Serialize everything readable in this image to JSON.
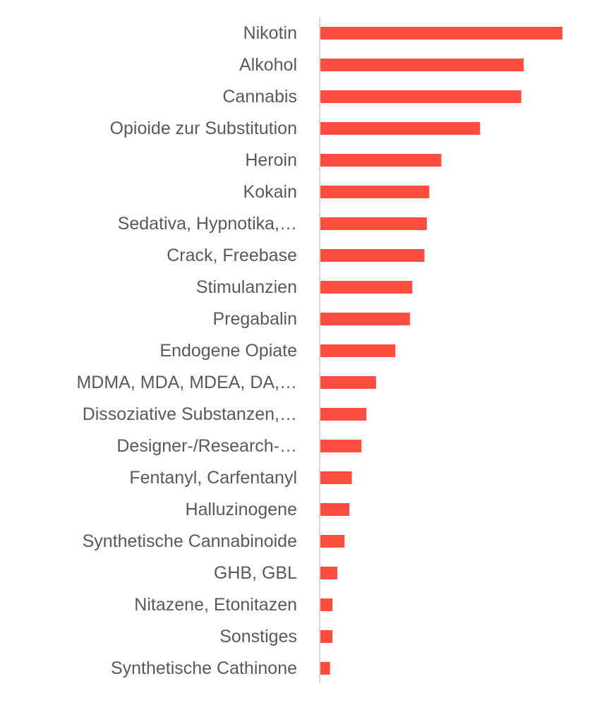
{
  "chart_data": {
    "type": "bar",
    "orientation": "horizontal",
    "title": "",
    "xlabel": "",
    "ylabel": "",
    "categories": [
      "Nikotin",
      "Alkohol",
      "Cannabis",
      "Opioide zur Substitution",
      "Heroin",
      "Kokain",
      "Sedativa, Hypnotika,…",
      "Crack, Freebase",
      "Stimulanzien",
      "Pregabalin",
      "Endogene Opiate",
      "MDMA, MDA, MDEA, DA,…",
      "Dissoziative Substanzen,…",
      "Designer-/Research-…",
      "Fentanyl, Carfentanyl",
      "Halluzinogene",
      "Synthetische Cannabinoide",
      "GHB, GBL",
      "Nitazene, Etonitazen",
      "Sonstiges",
      "Synthetische Cathinone"
    ],
    "values": [
      100,
      84,
      83,
      66,
      50,
      45,
      44,
      43,
      38,
      37,
      31,
      23,
      19,
      17,
      13,
      12,
      10,
      7,
      5,
      5,
      4
    ],
    "xlim": [
      0,
      100
    ],
    "grid": false,
    "legend": "none",
    "bar_color": "#FF4E40",
    "axis_color": "#D9D9D9",
    "label_color": "#595959"
  }
}
